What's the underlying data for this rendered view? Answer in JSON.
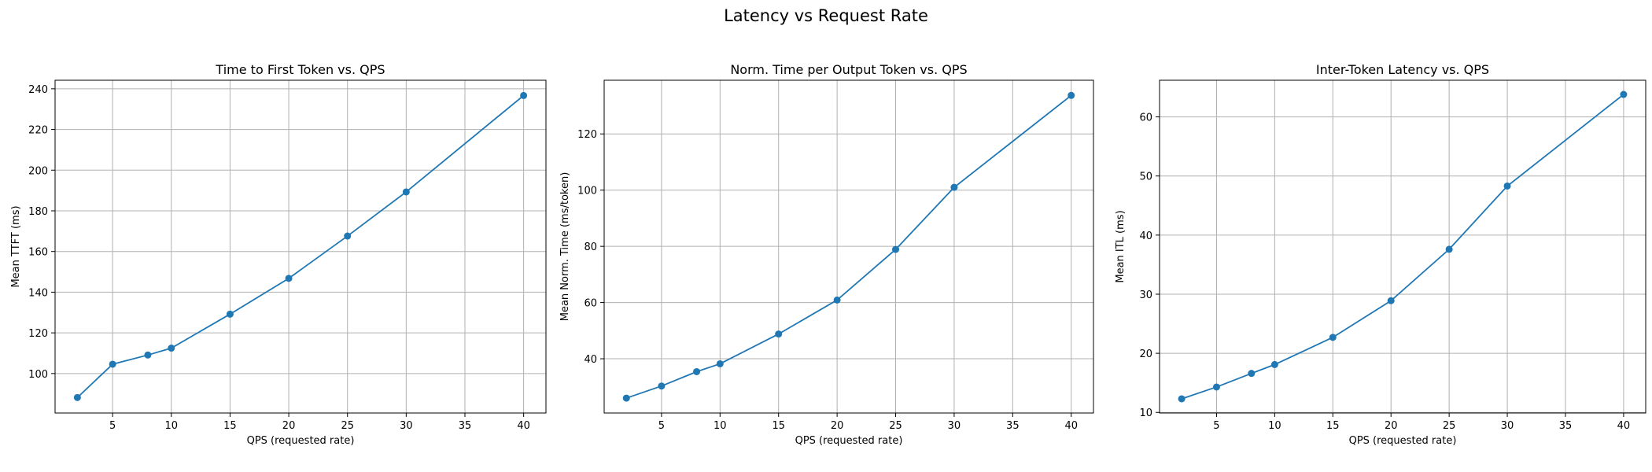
{
  "figure": {
    "title": "Latency vs Request Rate"
  },
  "chart_data": [
    {
      "type": "line",
      "title": "Time to First Token vs. QPS",
      "xlabel": "QPS (requested rate)",
      "ylabel": "Mean TTFT (ms)",
      "xlim": [
        0.1,
        41.9
      ],
      "ylim": [
        80.6,
        244.2
      ],
      "xticks": [
        5,
        10,
        15,
        20,
        25,
        30,
        35,
        40
      ],
      "yticks": [
        100,
        120,
        140,
        160,
        180,
        200,
        220,
        240
      ],
      "grid": true,
      "series": [
        {
          "color": "#1f77b4",
          "x": [
            2,
            5,
            8,
            10,
            15,
            20,
            25,
            30,
            40
          ],
          "y": [
            88.2,
            104.6,
            109.1,
            112.5,
            129.2,
            146.8,
            167.6,
            189.3,
            236.7
          ]
        }
      ]
    },
    {
      "type": "line",
      "title": "Norm. Time per Output Token vs. QPS",
      "xlabel": "QPS (requested rate)",
      "ylabel": "Mean Norm. Time (ms/token)",
      "xlim": [
        0.1,
        41.9
      ],
      "ylim": [
        20.7,
        139.1
      ],
      "xticks": [
        5,
        10,
        15,
        20,
        25,
        30,
        35,
        40
      ],
      "yticks": [
        40,
        60,
        80,
        100,
        120
      ],
      "grid": true,
      "series": [
        {
          "color": "#1f77b4",
          "x": [
            2,
            5,
            8,
            10,
            15,
            20,
            25,
            30,
            40
          ],
          "y": [
            26.0,
            30.3,
            35.4,
            38.2,
            48.8,
            60.9,
            78.9,
            101.0,
            133.7
          ]
        }
      ]
    },
    {
      "type": "line",
      "title": "Inter-Token Latency vs. QPS",
      "xlabel": "QPS (requested rate)",
      "ylabel": "Mean ITL (ms)",
      "xlim": [
        0.1,
        41.9
      ],
      "ylim": [
        9.9,
        66.2
      ],
      "xticks": [
        5,
        10,
        15,
        20,
        25,
        30,
        35,
        40
      ],
      "yticks": [
        10,
        20,
        30,
        40,
        50,
        60
      ],
      "grid": true,
      "series": [
        {
          "color": "#1f77b4",
          "x": [
            2,
            5,
            8,
            10,
            15,
            20,
            25,
            30,
            40
          ],
          "y": [
            12.3,
            14.3,
            16.6,
            18.1,
            22.7,
            28.9,
            37.6,
            48.3,
            63.8
          ]
        }
      ]
    }
  ]
}
